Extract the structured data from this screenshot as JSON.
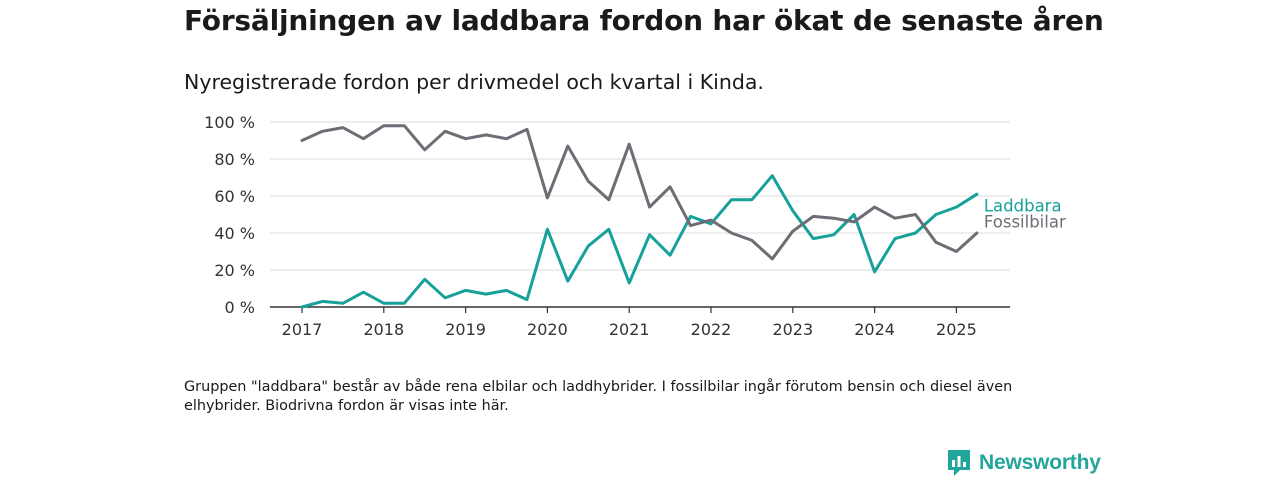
{
  "title": "Försäljningen av laddbara fordon har ökat de senaste åren",
  "subtitle": "Nyregistrerade fordon per drivmedel och kvartal i Kinda.",
  "note": "Gruppen \"laddbara\" består av både rena elbilar och laddhybrider. I fossilbilar ingår förutom bensin och diesel även elhybrider. Biodrivna fordon är visas inte här.",
  "brand": {
    "name": "Newsworthy"
  },
  "colors": {
    "laddbara": "#16a19a",
    "fossil": "#6e6c74",
    "axis": "#333333",
    "grid": "#dddddd"
  },
  "chart_data": {
    "type": "line",
    "x_start": "2017 Q1",
    "x_ticks": [
      "2017",
      "2018",
      "2019",
      "2020",
      "2021",
      "2022",
      "2023",
      "2024",
      "2025"
    ],
    "y_ticks": [
      "0 %",
      "20 %",
      "40 %",
      "60 %",
      "80 %",
      "100 %"
    ],
    "ylim": [
      0,
      100
    ],
    "grid": true,
    "legend": "right (inline labels at line ends)",
    "series": [
      {
        "name": "Laddbara",
        "color": "#16a19a",
        "values": [
          0,
          3,
          2,
          8,
          2,
          2,
          15,
          5,
          9,
          7,
          9,
          4,
          42,
          14,
          33,
          42,
          13,
          39,
          28,
          49,
          45,
          58,
          58,
          71,
          52,
          37,
          39,
          50,
          19,
          37,
          40,
          50,
          54,
          61
        ]
      },
      {
        "name": "Fossilbilar",
        "color": "#6e6c74",
        "values": [
          90,
          95,
          97,
          91,
          98,
          98,
          85,
          95,
          91,
          93,
          91,
          96,
          59,
          87,
          68,
          58,
          88,
          54,
          65,
          44,
          47,
          40,
          36,
          26,
          41,
          49,
          48,
          46,
          54,
          48,
          50,
          35,
          30,
          40
        ]
      }
    ]
  }
}
